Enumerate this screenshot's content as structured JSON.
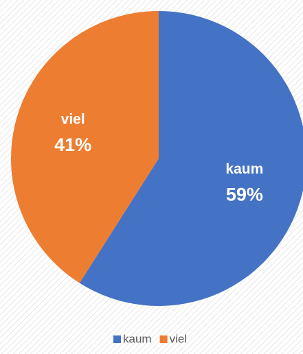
{
  "chart_data": {
    "type": "pie",
    "categories": [
      "kaum",
      "viel"
    ],
    "values": [
      59,
      41
    ],
    "value_labels": [
      "59%",
      "41%"
    ],
    "colors": [
      "#4472c4",
      "#ed7d31"
    ],
    "legend": "bottom"
  }
}
